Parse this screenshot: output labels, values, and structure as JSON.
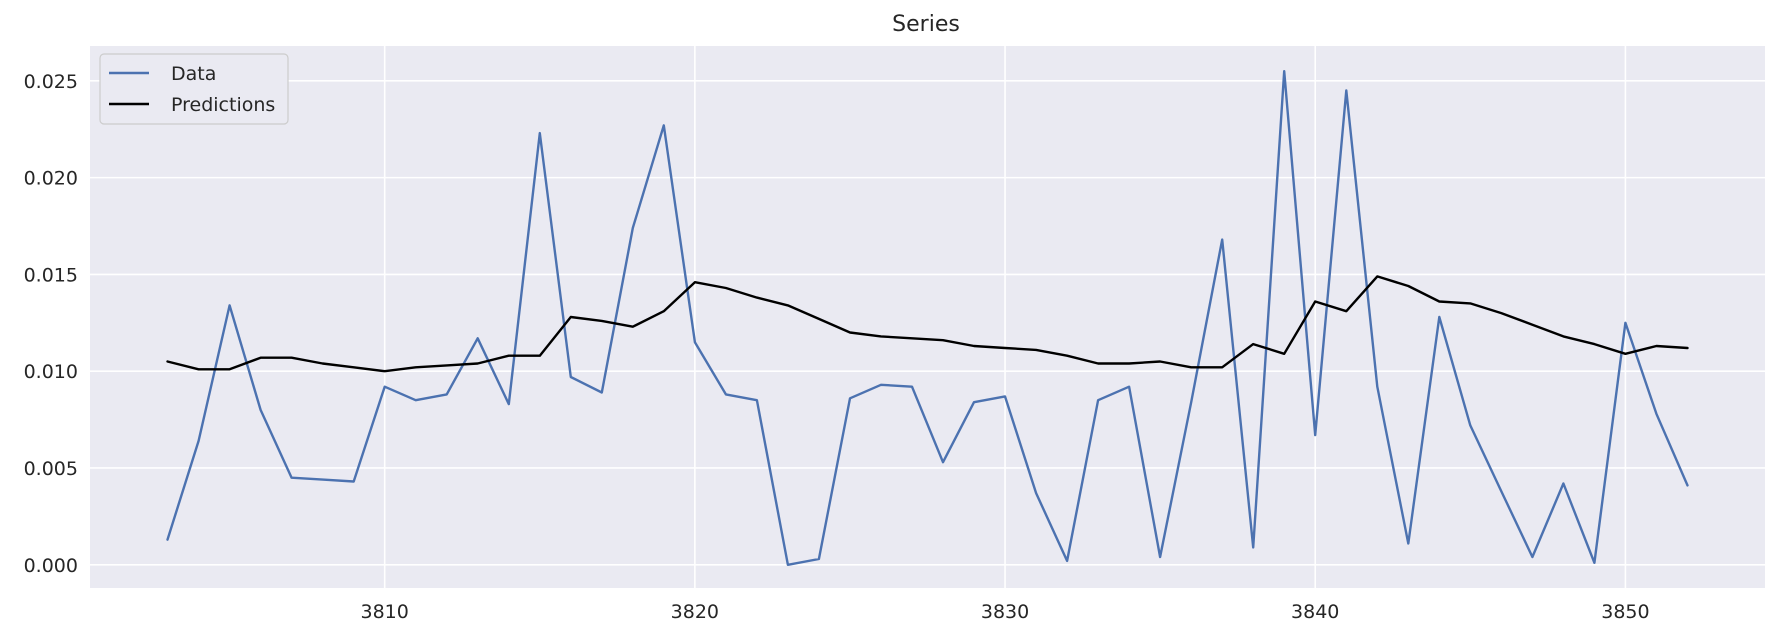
{
  "chart_data": {
    "type": "line",
    "title": "Series",
    "xlabel": "",
    "ylabel": "",
    "grid": true,
    "legend_position": "top-left",
    "xlim": [
      3800.5,
      3854.5
    ],
    "ylim": [
      -0.0012,
      0.0268
    ],
    "x_ticks": [
      3810,
      3820,
      3830,
      3840,
      3850
    ],
    "y_ticks": [
      0.0,
      0.005,
      0.01,
      0.015,
      0.02,
      0.025
    ],
    "y_tick_labels": [
      "0.000",
      "0.005",
      "0.010",
      "0.015",
      "0.020",
      "0.025"
    ],
    "x": [
      3803,
      3804,
      3805,
      3806,
      3807,
      3808,
      3809,
      3810,
      3811,
      3812,
      3813,
      3814,
      3815,
      3816,
      3817,
      3818,
      3819,
      3820,
      3821,
      3822,
      3823,
      3824,
      3825,
      3826,
      3827,
      3828,
      3829,
      3830,
      3831,
      3832,
      3833,
      3834,
      3835,
      3836,
      3837,
      3838,
      3839,
      3840,
      3841,
      3842,
      3843,
      3844,
      3845,
      3846,
      3847,
      3848,
      3849,
      3850,
      3851,
      3852
    ],
    "series": [
      {
        "name": "Data",
        "color": "#4c72b0",
        "values": [
          0.0013,
          0.0064,
          0.0134,
          0.008,
          0.0045,
          0.0044,
          0.0043,
          0.0092,
          0.0085,
          0.0088,
          0.0117,
          0.0083,
          0.0223,
          0.0097,
          0.0089,
          0.0174,
          0.0227,
          0.0115,
          0.0088,
          0.0085,
          0.0,
          0.0003,
          0.0086,
          0.0093,
          0.0092,
          0.0053,
          0.0084,
          0.0087,
          0.0037,
          0.0002,
          0.0085,
          0.0092,
          0.0004,
          0.0084,
          0.0168,
          0.0009,
          0.0255,
          0.0067,
          0.0245,
          0.0092,
          0.0011,
          0.0128,
          0.0072,
          0.0038,
          0.0004,
          0.0042,
          0.0001,
          0.0125,
          0.0078,
          0.0041
        ]
      },
      {
        "name": "Predictions",
        "color": "#000000",
        "values": [
          0.0105,
          0.0101,
          0.0101,
          0.0107,
          0.0107,
          0.0104,
          0.0102,
          0.01,
          0.0102,
          0.0103,
          0.0104,
          0.0108,
          0.0108,
          0.0128,
          0.0126,
          0.0123,
          0.0131,
          0.0146,
          0.0143,
          0.0138,
          0.0134,
          0.0127,
          0.012,
          0.0118,
          0.0117,
          0.0116,
          0.0113,
          0.0112,
          0.0111,
          0.0108,
          0.0104,
          0.0104,
          0.0105,
          0.0102,
          0.0102,
          0.0114,
          0.0109,
          0.0136,
          0.0131,
          0.0149,
          0.0144,
          0.0136,
          0.0135,
          0.013,
          0.0124,
          0.0118,
          0.0114,
          0.0109,
          0.0113,
          0.0112
        ]
      }
    ]
  }
}
